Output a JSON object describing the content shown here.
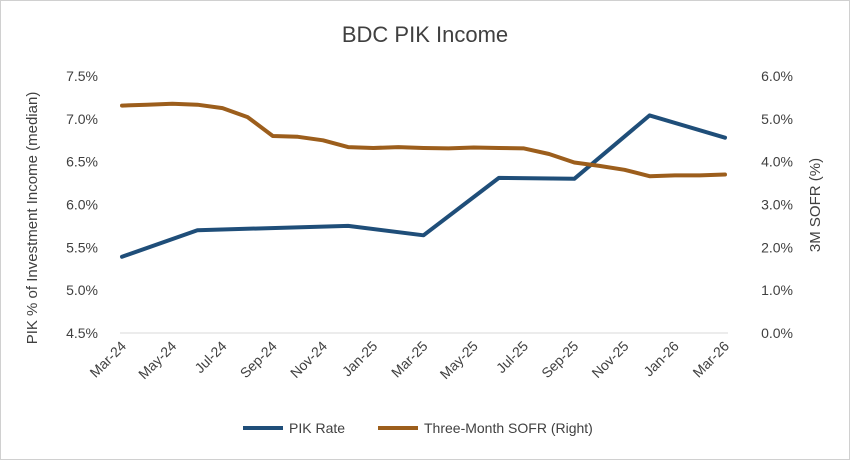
{
  "chart_data": {
    "type": "line",
    "title": "BDC PIK Income",
    "ylabel": "PIK % of Investment Income (median)",
    "y2label": "3M SOFR (%)",
    "ylim": [
      4.5,
      7.5
    ],
    "y2lim": [
      0,
      6
    ],
    "yticks": [
      "4.5%",
      "5.0%",
      "5.5%",
      "6.0%",
      "6.5%",
      "7.0%",
      "7.5%"
    ],
    "y2ticks": [
      "0.0%",
      "1.0%",
      "2.0%",
      "3.0%",
      "4.0%",
      "5.0%",
      "6.0%"
    ],
    "x_labels": [
      "Mar-24",
      "May-24",
      "Jul-24",
      "Sep-24",
      "Nov-24",
      "Jan-25",
      "Mar-25",
      "May-25",
      "Jul-25",
      "Sep-25",
      "Nov-25",
      "Jan-26",
      "Mar-26"
    ],
    "x": [
      "Mar-24",
      "Apr-24",
      "May-24",
      "Jun-24",
      "Jul-24",
      "Aug-24",
      "Sep-24",
      "Oct-24",
      "Nov-24",
      "Dec-24",
      "Jan-25",
      "Feb-25",
      "Mar-25",
      "Apr-25",
      "May-25",
      "Jun-25",
      "Jul-25",
      "Aug-25",
      "Sep-25",
      "Oct-25",
      "Nov-25",
      "Dec-25",
      "Jan-26",
      "Feb-26",
      "Mar-26"
    ],
    "legend_position": "bottom",
    "grid": false,
    "series": [
      {
        "name": "PIK Rate",
        "axis": "left",
        "color": "#1f4e79",
        "x": [
          "Mar-24",
          "Jun-24",
          "Dec-24",
          "Mar-25",
          "Jun-25",
          "Sep-25",
          "Dec-25",
          "Mar-26"
        ],
        "values": [
          5.39,
          5.7,
          5.75,
          5.64,
          6.31,
          6.3,
          7.04,
          6.78
        ]
      },
      {
        "name": "Three-Month SOFR (Right)",
        "axis": "right",
        "color": "#9c5e1c",
        "x": [
          "Mar-24",
          "Apr-24",
          "May-24",
          "Jun-24",
          "Jul-24",
          "Aug-24",
          "Sep-24",
          "Oct-24",
          "Nov-24",
          "Dec-24",
          "Jan-25",
          "Feb-25",
          "Mar-25",
          "Apr-25",
          "May-25",
          "Jun-25",
          "Jul-25",
          "Aug-25",
          "Sep-25",
          "Oct-25",
          "Nov-25",
          "Dec-25",
          "Jan-26",
          "Feb-26",
          "Mar-26"
        ],
        "values": [
          5.31,
          5.33,
          5.35,
          5.33,
          5.25,
          5.04,
          4.6,
          4.58,
          4.5,
          4.34,
          4.32,
          4.34,
          4.32,
          4.31,
          4.33,
          4.32,
          4.31,
          4.18,
          3.98,
          3.9,
          3.81,
          3.66,
          3.68,
          3.68,
          3.7
        ]
      }
    ]
  }
}
